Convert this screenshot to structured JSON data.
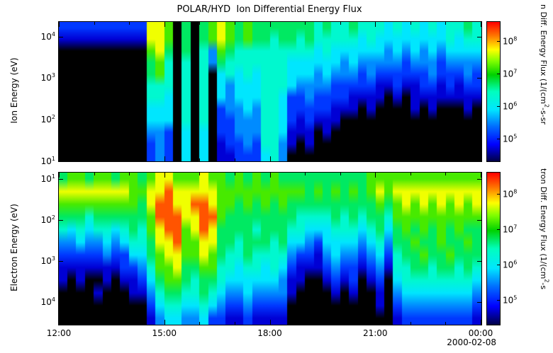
{
  "figure": {
    "title": "POLAR/HYD  Ion Differential Energy Flux",
    "date_label": "2000-02-08",
    "x_ticks": [
      "12:00",
      "15:00",
      "18:00",
      "21:00",
      "00:00"
    ],
    "x_tick_hours": [
      0,
      3,
      6,
      9,
      12
    ],
    "x_minor_every_hours": 1,
    "background_color": "#ffffff",
    "no_data_color": "#000000"
  },
  "colormap": {
    "range": [
      4.3,
      8.6
    ],
    "stops": [
      [
        0.0,
        0,
        0,
        70
      ],
      [
        0.12,
        0,
        0,
        255
      ],
      [
        0.25,
        0,
        110,
        255
      ],
      [
        0.37,
        0,
        230,
        255
      ],
      [
        0.5,
        0,
        255,
        190
      ],
      [
        0.62,
        0,
        210,
        0
      ],
      [
        0.72,
        130,
        255,
        0
      ],
      [
        0.8,
        255,
        255,
        0
      ],
      [
        0.9,
        255,
        120,
        0
      ],
      [
        1.0,
        255,
        0,
        0
      ]
    ]
  },
  "chart_data": [
    {
      "type": "heatmap",
      "name": "ion-differential-energy-flux",
      "title": "POLAR/HYD  Ion Differential Energy Flux",
      "ylabel": "Ion Energy (eV)",
      "y_scale": "log",
      "y_ticks": [
        "10^4",
        "10^3",
        "10^2",
        "10^1"
      ],
      "y_tick_exponents": [
        4,
        3,
        2,
        1
      ],
      "y_top_exp": 4.35,
      "y_bottom_exp": 1.0,
      "x_start": "12:00",
      "x_end": "00:00",
      "time_bins": 48,
      "bin_minutes": 15,
      "colorbar": {
        "label": "n Diff. Energy Flux (1/(cm^2-s-sr",
        "ticks": [
          "10^8",
          "10^7",
          "10^6",
          "10^5"
        ],
        "tick_exponents": [
          8,
          7,
          6,
          5
        ],
        "scale": "log"
      },
      "level_values": {
        "0": null,
        "1": 4.7,
        "2": 5.1,
        "3": 5.5,
        "4": 5.9,
        "5": 6.3,
        "6": 6.7,
        "7": 7.2,
        "8": 7.7,
        "9": 8.3
      },
      "rows_top_to_bottom": [
        "222222222288706067876766666665655655545454545565",
        "111111111188706067876766566565555545444444445455",
        "000000000078606053765555555554544444434343434444",
        "000000000067505053655555554444443433333233323333",
        "000000000067505050454545554443433323222222322232",
        "000000000055505050434445554333322222112112212122",
        "000000000055405050434445542232222111101011111111",
        "000000000044405050233435542222211101000010100010",
        "000000000044405050223335542121110000000000000000",
        "000000000033204040223335541110100000000000000000",
        "000000000023204040122325531010000000000000000000",
        "000000000023204040112224530000000000000000000000"
      ]
    },
    {
      "type": "heatmap",
      "name": "electron-differential-energy-flux",
      "ylabel": "Electron Energy (eV)",
      "y_scale": "log-inverted",
      "y_ticks": [
        "10^1",
        "10^2",
        "10^3",
        "10^4"
      ],
      "y_tick_exponents": [
        1,
        2,
        3,
        4
      ],
      "y_top_exp": 0.85,
      "y_bottom_exp": 4.55,
      "x_start": "12:00",
      "x_end": "00:00",
      "time_bins": 48,
      "bin_minutes": 15,
      "colorbar": {
        "label": "tron Diff. Energy Flux (1/(cm^2-s",
        "ticks": [
          "10^8",
          "10^7",
          "10^6",
          "10^5"
        ],
        "tick_exponents": [
          8,
          7,
          6,
          5
        ],
        "scale": "log"
      },
      "level_values": {
        "0": null,
        "1": 4.7,
        "2": 5.1,
        "3": 5.5,
        "4": 5.9,
        "5": 6.3,
        "6": 6.7,
        "7": 7.2,
        "8": 7.7,
        "9": 8.3
      },
      "rows_top_to_bottom": [
        "677677677678877787767676766666666667777777777777",
        "888888887788988888777777777767676767878888888888",
        "777777777689988998776767676666666666767878787878",
        "666566666679998899766666666555565656657777777777",
        "545455456578997898666656665544455545646767676766",
        "334334345568897788665666564432444434536676676676",
        "222223224467887787655655553221343323425667667666",
        "111111122357786677554554542111232212315566566565",
        "101001011246776566544444431100121201204555555554",
        "000010001135665565433433331000010100103444444443",
        "000000000024554454322322220000000000102333333332",
        "000000000013443342211211110000000000001222222221"
      ]
    }
  ]
}
